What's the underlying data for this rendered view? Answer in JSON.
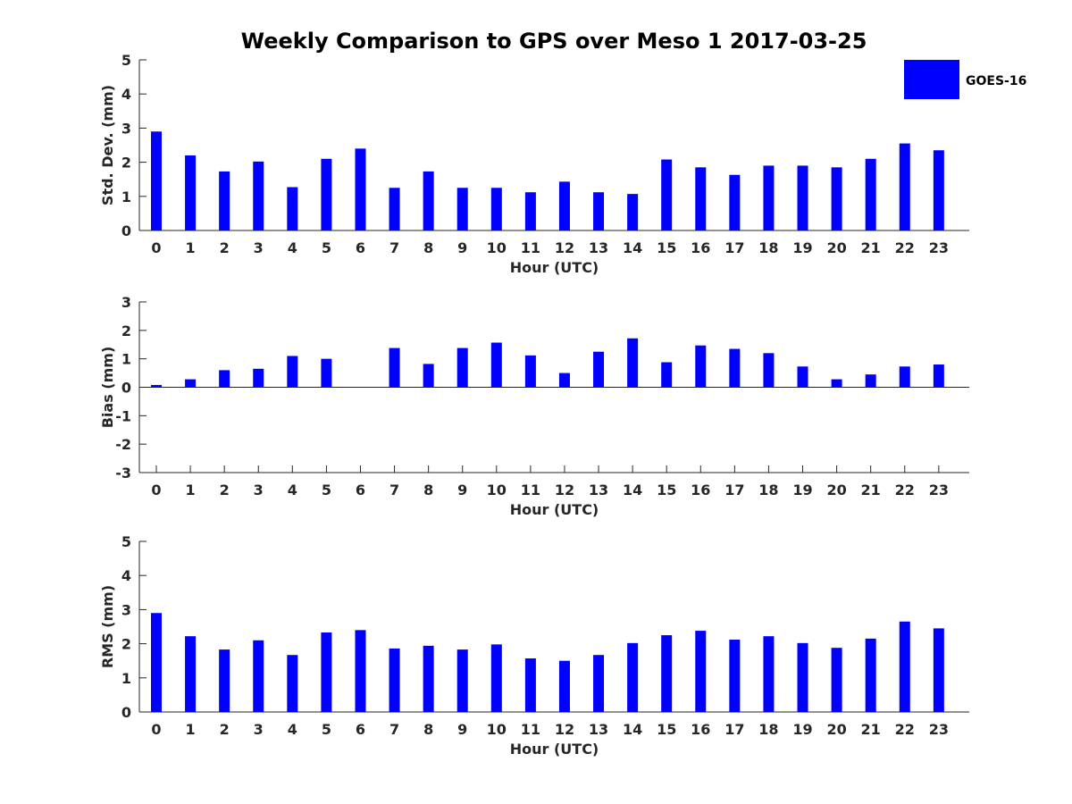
{
  "chart_title": "Weekly Comparison to GPS over Meso 1 2017-03-25",
  "legend": {
    "label": "GOES-16",
    "color": "#0000ff"
  },
  "chart_data": [
    {
      "type": "bar",
      "xlabel": "Hour (UTC)",
      "ylabel": "Std. Dev. (mm)",
      "categories": [
        "0",
        "1",
        "2",
        "3",
        "4",
        "5",
        "6",
        "7",
        "8",
        "9",
        "10",
        "11",
        "12",
        "13",
        "14",
        "15",
        "16",
        "17",
        "18",
        "19",
        "20",
        "21",
        "22",
        "23"
      ],
      "series": [
        {
          "name": "GOES-16",
          "values": [
            2.9,
            2.2,
            1.73,
            2.02,
            1.27,
            2.1,
            2.4,
            1.25,
            1.73,
            1.25,
            1.25,
            1.12,
            1.43,
            1.12,
            1.07,
            2.08,
            1.85,
            1.63,
            1.9,
            1.9,
            1.85,
            2.1,
            2.55,
            2.35
          ]
        }
      ],
      "ylim": [
        0,
        5
      ],
      "yticks": [
        "0",
        "1",
        "2",
        "3",
        "4",
        "5"
      ],
      "grid": false,
      "legend_position": "top-right"
    },
    {
      "type": "bar",
      "xlabel": "Hour (UTC)",
      "ylabel": "Bias (mm)",
      "categories": [
        "0",
        "1",
        "2",
        "3",
        "4",
        "5",
        "6",
        "7",
        "8",
        "9",
        "10",
        "11",
        "12",
        "13",
        "14",
        "15",
        "16",
        "17",
        "18",
        "19",
        "20",
        "21",
        "22",
        "23"
      ],
      "series": [
        {
          "name": "GOES-16",
          "values": [
            0.08,
            0.28,
            0.6,
            0.65,
            1.1,
            1.0,
            0.0,
            1.38,
            0.82,
            1.38,
            1.57,
            1.12,
            0.5,
            1.25,
            1.72,
            0.88,
            1.47,
            1.35,
            1.2,
            0.73,
            0.28,
            0.45,
            0.73,
            0.8
          ]
        }
      ],
      "ylim": [
        -3,
        3
      ],
      "yticks": [
        "-3",
        "-2",
        "-1",
        "0",
        "1",
        "2",
        "3"
      ],
      "grid": false,
      "zero_line": true
    },
    {
      "type": "bar",
      "xlabel": "Hour (UTC)",
      "ylabel": "RMS (mm)",
      "categories": [
        "0",
        "1",
        "2",
        "3",
        "4",
        "5",
        "6",
        "7",
        "8",
        "9",
        "10",
        "11",
        "12",
        "13",
        "14",
        "15",
        "16",
        "17",
        "18",
        "19",
        "20",
        "21",
        "22",
        "23"
      ],
      "series": [
        {
          "name": "GOES-16",
          "values": [
            2.9,
            2.22,
            1.83,
            2.1,
            1.67,
            2.33,
            2.4,
            1.86,
            1.94,
            1.83,
            1.98,
            1.57,
            1.5,
            1.67,
            2.02,
            2.25,
            2.38,
            2.12,
            2.22,
            2.02,
            1.88,
            2.15,
            2.65,
            2.45
          ]
        }
      ],
      "ylim": [
        0,
        5
      ],
      "yticks": [
        "0",
        "1",
        "2",
        "3",
        "4",
        "5"
      ],
      "grid": false
    }
  ]
}
